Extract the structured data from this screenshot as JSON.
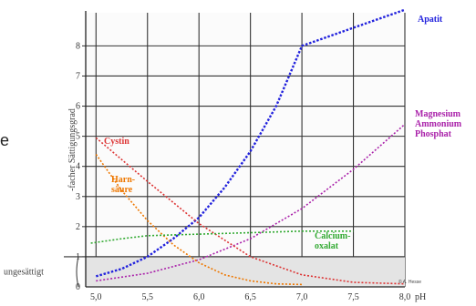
{
  "chart_data": {
    "type": "line",
    "title": "",
    "xlabel": "pH",
    "ylabel": "-facher Sättigungsgrad",
    "xlim": [
      4.9,
      8.0
    ],
    "ylim": [
      0,
      9.1
    ],
    "x_ticks": [
      "5,0",
      "5,5",
      "6,0",
      "6,5",
      "7,0",
      "7,5",
      "8,0"
    ],
    "x_tick_values": [
      5.0,
      5.5,
      6.0,
      6.5,
      7.0,
      7.5,
      8.0
    ],
    "y_ticks": [
      "1",
      "2",
      "3",
      "4",
      "5",
      "6",
      "7",
      "8"
    ],
    "y_tick_values": [
      1,
      2,
      3,
      4,
      5,
      6,
      7,
      8
    ],
    "grid": true,
    "threshold": {
      "y": 1,
      "label": "ungesättigt"
    },
    "credit": "© A. Hesse",
    "cut_text": "e",
    "series": [
      {
        "name": "Apatit",
        "color": "#2222dd",
        "x": [
          5.0,
          5.25,
          5.5,
          5.75,
          6.0,
          6.25,
          6.5,
          6.75,
          7.0,
          7.5,
          8.0
        ],
        "y": [
          0.35,
          0.6,
          1.0,
          1.6,
          2.3,
          3.3,
          4.5,
          6.0,
          8.0,
          8.6,
          9.2
        ]
      },
      {
        "name": "Magnesium Ammonium Phosphat",
        "color": "#aa22aa",
        "x": [
          5.0,
          5.5,
          6.0,
          6.5,
          7.0,
          7.5,
          8.0
        ],
        "y": [
          0.2,
          0.45,
          0.9,
          1.6,
          2.6,
          3.9,
          5.4
        ]
      },
      {
        "name": "Cystin",
        "color": "#dd3333",
        "x": [
          5.0,
          5.5,
          6.0,
          6.5,
          7.0,
          7.5,
          8.0
        ],
        "y": [
          4.95,
          3.5,
          2.1,
          1.0,
          0.4,
          0.15,
          0.1
        ]
      },
      {
        "name": "Harn-säure",
        "color": "#ee7700",
        "x": [
          5.0,
          5.25,
          5.5,
          5.75,
          6.0,
          6.25,
          6.5,
          6.75,
          7.0
        ],
        "y": [
          4.4,
          3.2,
          2.2,
          1.4,
          0.8,
          0.4,
          0.2,
          0.1,
          0.08
        ]
      },
      {
        "name": "Calcium-oxalat",
        "color": "#33aa33",
        "x": [
          4.95,
          5.25,
          5.5,
          6.0,
          6.5,
          7.0,
          7.5
        ],
        "y": [
          1.45,
          1.6,
          1.7,
          1.75,
          1.8,
          1.85,
          1.85
        ]
      }
    ],
    "labels": {
      "Apatit": [
        "Apatit"
      ],
      "Magnesium Ammonium Phosphat": [
        "Magnesium",
        "Ammonium",
        "Phosphat"
      ],
      "Cystin": [
        "Cystin"
      ],
      "Harn-säure": [
        "Harn-",
        "säure"
      ],
      "Calcium-oxalat": [
        "Calcium-",
        "oxalat"
      ]
    }
  }
}
